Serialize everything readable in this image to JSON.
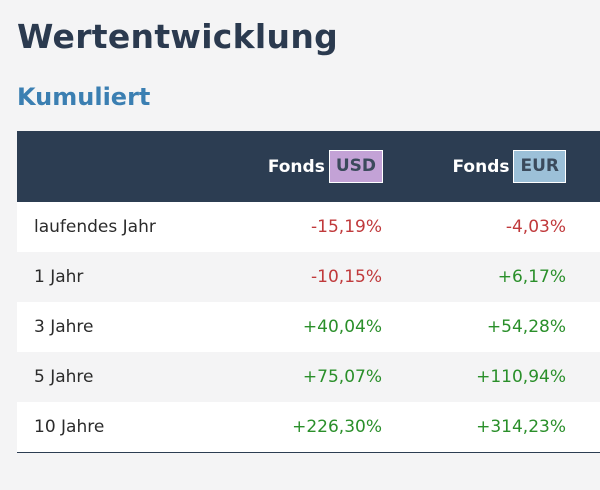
{
  "page": {
    "title": "Wertentwicklung",
    "subtitle": "Kumuliert"
  },
  "table": {
    "headers": {
      "usd_label": "Fonds",
      "usd_badge": "USD",
      "eur_label": "Fonds",
      "eur_badge": "EUR"
    },
    "rows": [
      {
        "label": "laufendes Jahr",
        "usd": "-15,19%",
        "eur": "-4,03%"
      },
      {
        "label": "1 Jahr",
        "usd": "-10,15%",
        "eur": "+6,17%"
      },
      {
        "label": "3 Jahre",
        "usd": "+40,04%",
        "eur": "+54,28%"
      },
      {
        "label": "5 Jahre",
        "usd": "+75,07%",
        "eur": "+110,94%"
      },
      {
        "label": "10 Jahre",
        "usd": "+226,30%",
        "eur": "+314,23%"
      }
    ]
  },
  "colors": {
    "header_bg": "#2c3d52",
    "title": "#2b3a4f",
    "subtitle": "#3b7fb2",
    "negative": "#c0393b",
    "positive": "#2a8f2a",
    "usd_badge": "#c3a2d6",
    "eur_badge": "#9cc0d8"
  }
}
